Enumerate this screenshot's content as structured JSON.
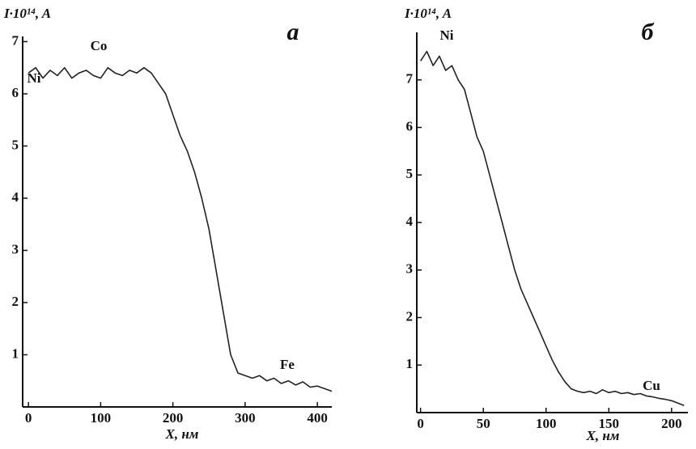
{
  "chart_data": [
    {
      "type": "line",
      "panel": "а",
      "ylabel": "I·10¹⁴, A",
      "xlabel": "X, нм",
      "annotations": [
        "Co",
        "Ni",
        "Fe"
      ],
      "color": "#222222",
      "x": [
        0,
        10,
        20,
        30,
        40,
        50,
        60,
        70,
        80,
        90,
        100,
        110,
        120,
        130,
        140,
        150,
        160,
        170,
        180,
        190,
        200,
        210,
        220,
        230,
        240,
        250,
        260,
        270,
        280,
        290,
        300,
        310,
        320,
        330,
        340,
        350,
        360,
        370,
        380,
        390,
        400,
        410,
        420
      ],
      "values": [
        6.4,
        6.5,
        6.3,
        6.45,
        6.35,
        6.5,
        6.3,
        6.4,
        6.45,
        6.35,
        6.3,
        6.5,
        6.4,
        6.35,
        6.45,
        6.4,
        6.5,
        6.4,
        6.2,
        6.0,
        5.6,
        5.2,
        4.9,
        4.5,
        4.0,
        3.4,
        2.6,
        1.8,
        1.0,
        0.65,
        0.6,
        0.55,
        0.6,
        0.5,
        0.55,
        0.45,
        0.5,
        0.42,
        0.48,
        0.38,
        0.4,
        0.35,
        0.3
      ],
      "xlim": [
        -8,
        420
      ],
      "ylim": [
        0,
        7.1
      ],
      "xticks": [
        0,
        100,
        200,
        300,
        400
      ],
      "yticks": [
        1,
        2,
        3,
        4,
        5,
        6,
        7
      ]
    },
    {
      "type": "line",
      "panel": "б",
      "ylabel": "I·10¹⁴, A",
      "xlabel": "X, нм",
      "annotations": [
        "Ni",
        "Cu"
      ],
      "color": "#222222",
      "x": [
        0,
        5,
        10,
        15,
        20,
        25,
        30,
        35,
        40,
        45,
        50,
        55,
        60,
        65,
        70,
        75,
        80,
        85,
        90,
        95,
        100,
        105,
        110,
        115,
        120,
        125,
        130,
        135,
        140,
        145,
        150,
        155,
        160,
        165,
        170,
        175,
        180,
        185,
        190,
        195,
        200,
        205,
        210
      ],
      "values": [
        7.4,
        7.6,
        7.3,
        7.5,
        7.2,
        7.3,
        7.0,
        6.8,
        6.3,
        5.8,
        5.5,
        5.0,
        4.5,
        4.0,
        3.5,
        3.0,
        2.6,
        2.3,
        2.0,
        1.7,
        1.4,
        1.1,
        0.85,
        0.65,
        0.5,
        0.45,
        0.42,
        0.45,
        0.4,
        0.48,
        0.42,
        0.45,
        0.4,
        0.42,
        0.38,
        0.4,
        0.35,
        0.33,
        0.3,
        0.28,
        0.25,
        0.2,
        0.15
      ],
      "xlim": [
        -3,
        213
      ],
      "ylim": [
        0,
        8
      ],
      "xticks": [
        0,
        50,
        100,
        150,
        200
      ],
      "yticks": [
        1,
        2,
        3,
        4,
        5,
        6,
        7
      ]
    }
  ]
}
